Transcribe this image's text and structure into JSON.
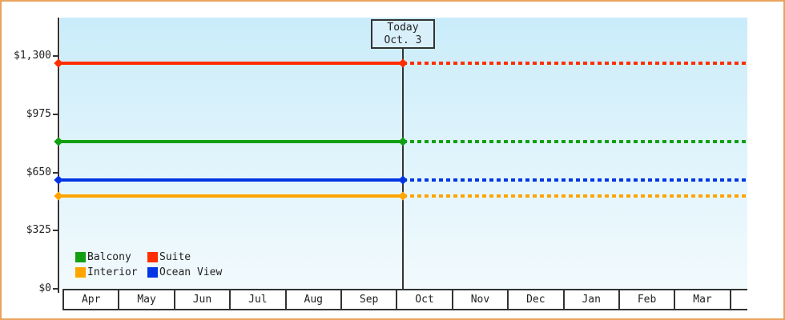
{
  "window": {
    "background": "#ffffff",
    "border_color": "#e9a45c"
  },
  "chart_data": {
    "type": "line",
    "title": "",
    "x_categories": [
      "Apr",
      "May",
      "Jun",
      "Jul",
      "Aug",
      "Sep",
      "Oct",
      "Nov",
      "Dec",
      "Jan",
      "Feb",
      "Mar"
    ],
    "y_axis": {
      "ticks": [
        {
          "label": "$0",
          "value": 0
        },
        {
          "label": "$325",
          "value": 325
        },
        {
          "label": "$650",
          "value": 650
        },
        {
          "label": "$975",
          "value": 975
        },
        {
          "label": "$1,300",
          "value": 1300
        }
      ],
      "ylim": [
        0,
        1300
      ]
    },
    "series": [
      {
        "name": "Balcony",
        "color": "#12a012",
        "value": 822
      },
      {
        "name": "Suite",
        "color": "#ff2e00",
        "value": 1260
      },
      {
        "name": "Interior",
        "color": "#ffa400",
        "value": 518
      },
      {
        "name": "Ocean View",
        "color": "#0435e4",
        "value": 608
      }
    ],
    "today_marker": {
      "line1": "Today",
      "line2": "Oct. 3",
      "month": "Oct",
      "day": 3
    },
    "style": {
      "note": "Each series is a flat horizontal price line across all months; solid up to the Today (Oct. 3) marker, dashed after it; diamond markers at the y-axis and at the today line.",
      "grid": false,
      "legend_position": "bottom-left",
      "plot_background": "vertical light-blue gradient"
    }
  }
}
